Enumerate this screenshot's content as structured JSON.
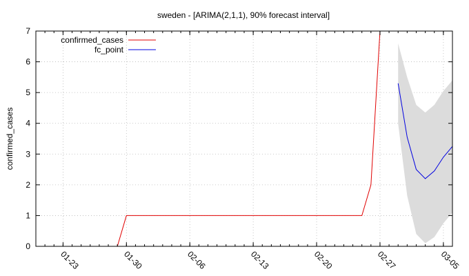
{
  "chart_data": {
    "type": "line",
    "title": "sweden -  [ARIMA(2,1,1), 90% forecast interval]",
    "xlabel": "",
    "ylabel": "confirmed_cases",
    "xlim": [
      "2020-01-20",
      "2020-03-06"
    ],
    "ylim": [
      0,
      7
    ],
    "y_ticks": [
      0,
      1,
      2,
      3,
      4,
      5,
      6,
      7
    ],
    "x_ticks": [
      {
        "date": "2020-01-23",
        "label": "01-23"
      },
      {
        "date": "2020-01-30",
        "label": "01-30"
      },
      {
        "date": "2020-02-06",
        "label": "02-06"
      },
      {
        "date": "2020-02-13",
        "label": "02-13"
      },
      {
        "date": "2020-02-20",
        "label": "02-20"
      },
      {
        "date": "2020-02-27",
        "label": "02-27"
      },
      {
        "date": "2020-03-05",
        "label": "03-05"
      }
    ],
    "grid": true,
    "legend_position": "top-left",
    "series": [
      {
        "name": "confirmed_cases",
        "color": "#e00000",
        "points": [
          {
            "x": "2020-01-29",
            "y": 0
          },
          {
            "x": "2020-01-30",
            "y": 1
          },
          {
            "x": "2020-02-25",
            "y": 1
          },
          {
            "x": "2020-02-26",
            "y": 2
          },
          {
            "x": "2020-02-27",
            "y": 7
          }
        ]
      },
      {
        "name": "fc_point",
        "color": "#0000e0",
        "points": [
          {
            "x": "2020-02-29",
            "y": 5.3
          },
          {
            "x": "2020-03-01",
            "y": 3.55
          },
          {
            "x": "2020-03-02",
            "y": 2.5
          },
          {
            "x": "2020-03-03",
            "y": 2.2
          },
          {
            "x": "2020-03-04",
            "y": 2.45
          },
          {
            "x": "2020-03-05",
            "y": 2.9
          },
          {
            "x": "2020-03-06",
            "y": 3.25
          }
        ]
      }
    ],
    "interval": {
      "color": "#dcdcdc",
      "points": [
        {
          "x": "2020-02-29",
          "lo": 4.0,
          "hi": 6.6
        },
        {
          "x": "2020-03-01",
          "lo": 1.65,
          "hi": 5.5
        },
        {
          "x": "2020-03-02",
          "lo": 0.4,
          "hi": 4.6
        },
        {
          "x": "2020-03-03",
          "lo": 0.1,
          "hi": 4.35
        },
        {
          "x": "2020-03-04",
          "lo": 0.3,
          "hi": 4.6
        },
        {
          "x": "2020-03-05",
          "lo": 0.75,
          "hi": 5.05
        },
        {
          "x": "2020-03-06",
          "lo": 1.1,
          "hi": 5.4
        }
      ]
    }
  }
}
